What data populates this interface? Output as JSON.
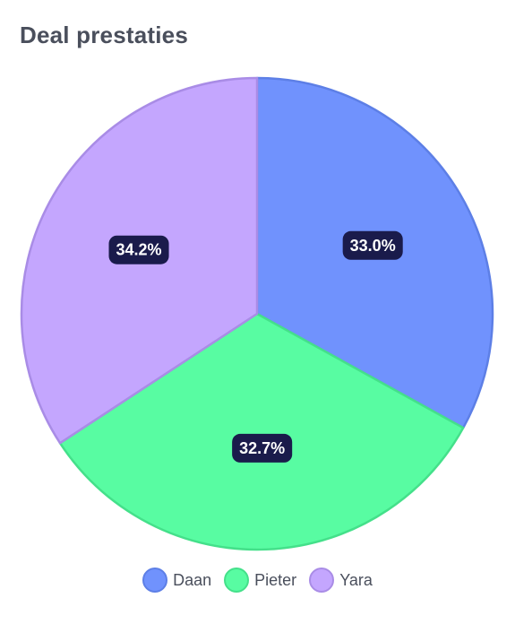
{
  "title": "Deal prestaties",
  "chart_data": {
    "type": "pie",
    "title": "Deal prestaties",
    "slices": [
      {
        "name": "Daan",
        "value": 33.0,
        "label": "33.0%",
        "color": "#7092fd",
        "stroke": "#5d7fe6"
      },
      {
        "name": "Pieter",
        "value": 32.7,
        "label": "32.7%",
        "color": "#58fca2",
        "stroke": "#44e08a"
      },
      {
        "name": "Yara",
        "value": 34.2,
        "label": "34.2%",
        "color": "#c4a6fe",
        "stroke": "#a98ce6"
      }
    ],
    "start_angle_deg": 0,
    "direction": "clockwise",
    "legend_position": "bottom",
    "label_box_color": "#1a1b4b"
  }
}
